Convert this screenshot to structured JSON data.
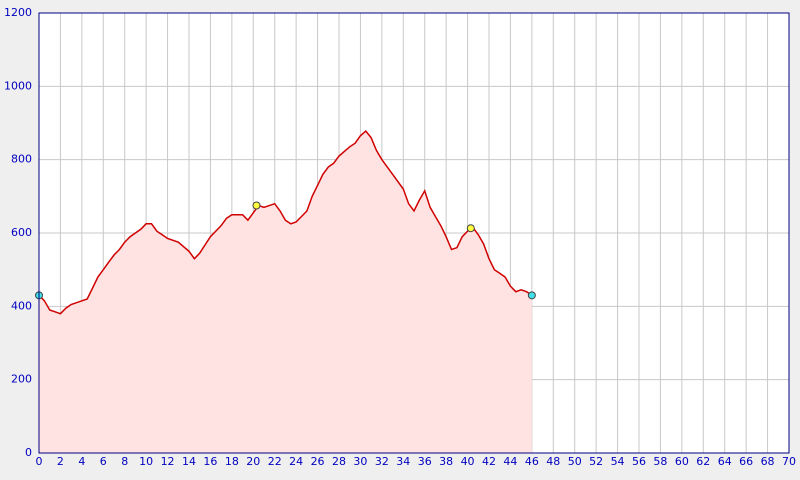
{
  "chart_data": {
    "type": "area",
    "x": [
      0,
      0.5,
      1,
      1.5,
      2,
      2.5,
      3,
      3.5,
      4,
      4.5,
      5,
      5.5,
      6,
      6.5,
      7,
      7.5,
      8,
      8.5,
      9,
      9.5,
      10,
      10.5,
      11,
      11.5,
      12,
      13,
      14,
      14.5,
      15,
      16,
      17,
      17.5,
      18,
      19,
      19.5,
      20,
      20.5,
      21,
      22,
      22.5,
      23,
      23.5,
      24,
      25,
      25.5,
      26,
      26.5,
      27,
      27.5,
      28,
      29,
      29.5,
      30,
      30.5,
      31,
      31.5,
      32,
      33,
      34,
      34.5,
      35,
      35.5,
      36,
      36.5,
      37,
      37.5,
      38,
      38.5,
      39,
      39.5,
      40,
      40.5,
      41,
      41.5,
      42,
      42.5,
      43,
      43.5,
      44,
      44.5,
      45,
      45.5,
      46
    ],
    "values": [
      430,
      415,
      390,
      385,
      380,
      395,
      405,
      410,
      415,
      420,
      450,
      480,
      500,
      520,
      540,
      555,
      575,
      590,
      600,
      610,
      625,
      625,
      605,
      595,
      585,
      575,
      550,
      530,
      545,
      590,
      620,
      640,
      650,
      650,
      635,
      655,
      675,
      670,
      680,
      660,
      635,
      625,
      630,
      660,
      700,
      730,
      760,
      780,
      790,
      810,
      835,
      845,
      865,
      878,
      860,
      825,
      800,
      760,
      720,
      680,
      660,
      690,
      715,
      670,
      645,
      620,
      590,
      555,
      560,
      590,
      605,
      615,
      595,
      570,
      530,
      500,
      490,
      480,
      455,
      440,
      445,
      440,
      430
    ],
    "color": "#d00000",
    "fill": "#ffe2e2",
    "markers": [
      {
        "x": 0,
        "y": 430,
        "color": "#40e0e8"
      },
      {
        "x": 20.3,
        "y": 675,
        "color": "#ffff40"
      },
      {
        "x": 40.3,
        "y": 613,
        "color": "#ffff40"
      },
      {
        "x": 46,
        "y": 430,
        "color": "#40e0e8"
      }
    ],
    "xlim": [
      0,
      70
    ],
    "ylim": [
      0,
      1200
    ],
    "xticks": [
      0,
      2,
      4,
      6,
      8,
      10,
      12,
      14,
      16,
      18,
      20,
      22,
      24,
      26,
      28,
      30,
      32,
      34,
      36,
      38,
      40,
      42,
      44,
      46,
      48,
      50,
      52,
      54,
      56,
      58,
      60,
      62,
      64,
      66,
      68,
      70
    ],
    "yticks": [
      0,
      200,
      400,
      600,
      800,
      1000,
      1200
    ],
    "grid": true
  }
}
